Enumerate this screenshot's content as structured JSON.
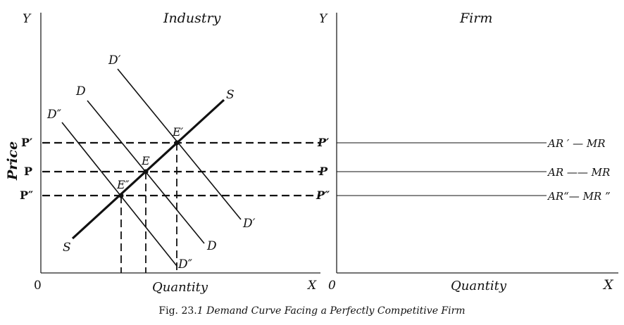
{
  "industry": {
    "title": "Industry",
    "y_axis": "Y",
    "x_axis": "X",
    "origin": "0",
    "x_label": "Quantity",
    "y_label": "Price",
    "price_labels": {
      "p_prime": "P′",
      "p": "P",
      "p_dprime": "P″"
    },
    "demand_labels": {
      "d_prime_top": "D′",
      "d_top": "D",
      "d_dprime_top": "D″",
      "d_prime_bottom": "D′",
      "d_bottom": "D",
      "d_dprime_bottom": "D″"
    },
    "supply_labels": {
      "top": "S",
      "bottom": "S"
    },
    "equilibrium_labels": {
      "e_prime": "E′",
      "e": "E",
      "e_dprime": "E″"
    }
  },
  "firm": {
    "title": "Firm",
    "y_axis": "Y",
    "x_axis": "X",
    "origin": "0",
    "x_label": "Quantity",
    "price_labels": {
      "p_prime": "P′",
      "p": "P",
      "p_dprime": "P″"
    },
    "revenue_labels": {
      "ar_prime": "AR ′ — MR",
      "ar": "AR —— MR",
      "ar_dprime": "AR“— MR ”"
    }
  },
  "caption": {
    "prefix": "Fig. 23.",
    "rest": "1 Demand Curve Facing a Perfectly Competitive Firm"
  }
}
